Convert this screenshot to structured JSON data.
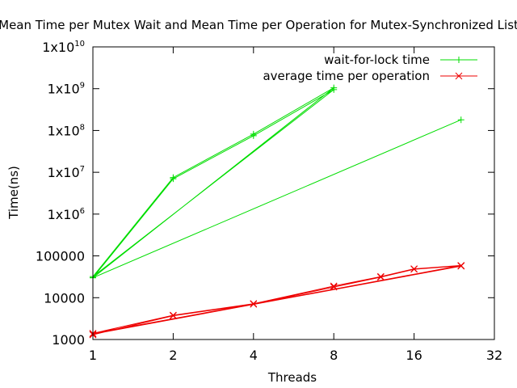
{
  "chart_data": {
    "type": "line",
    "title": "Mean Time per Mutex Wait and Mean Time per Operation for Mutex-Synchronized List",
    "xlabel": "Threads",
    "ylabel": "Time(ns)",
    "x_scale": "log2",
    "y_scale": "log10",
    "xlim": [
      1,
      32
    ],
    "ylim": [
      1000,
      10000000000
    ],
    "xticks": [
      1,
      2,
      4,
      8,
      16,
      32
    ],
    "xtick_labels": [
      "1",
      "2",
      "4",
      "8",
      "16",
      "32"
    ],
    "yticks": [
      {
        "value": 1000,
        "label": "1000"
      },
      {
        "value": 10000,
        "label": "10000"
      },
      {
        "value": 100000,
        "label": "100000"
      },
      {
        "value": 1000000,
        "base": "1x10",
        "exp": "6"
      },
      {
        "value": 10000000,
        "base": "1x10",
        "exp": "7"
      },
      {
        "value": 100000000,
        "base": "1x10",
        "exp": "8"
      },
      {
        "value": 1000000000,
        "base": "1x10",
        "exp": "9"
      },
      {
        "value": 10000000000,
        "base": "1x10",
        "exp": "10"
      }
    ],
    "grid": false,
    "legend_position": "top-right",
    "series": [
      {
        "name": "wait-for-lock time",
        "color": "#00dd00",
        "marker": "plus",
        "x": [
          1,
          2,
          4,
          8,
          1,
          2,
          4,
          8,
          1,
          24
        ],
        "y": [
          30000,
          7000000,
          75000000,
          950000000,
          32000,
          7500000,
          82000000,
          1050000000,
          30000,
          180000000
        ]
      },
      {
        "name": "average time per operation",
        "color": "#ee0000",
        "marker": "cross",
        "x": [
          1,
          2,
          4,
          8,
          12,
          16,
          24,
          1,
          2,
          4,
          8,
          12,
          16,
          24,
          1,
          24
        ],
        "y": [
          1300,
          3700,
          7000,
          18000,
          31000,
          48000,
          58000,
          1400,
          3800,
          7200,
          19000,
          32000,
          49000,
          59000,
          1350,
          57000
        ]
      }
    ]
  }
}
